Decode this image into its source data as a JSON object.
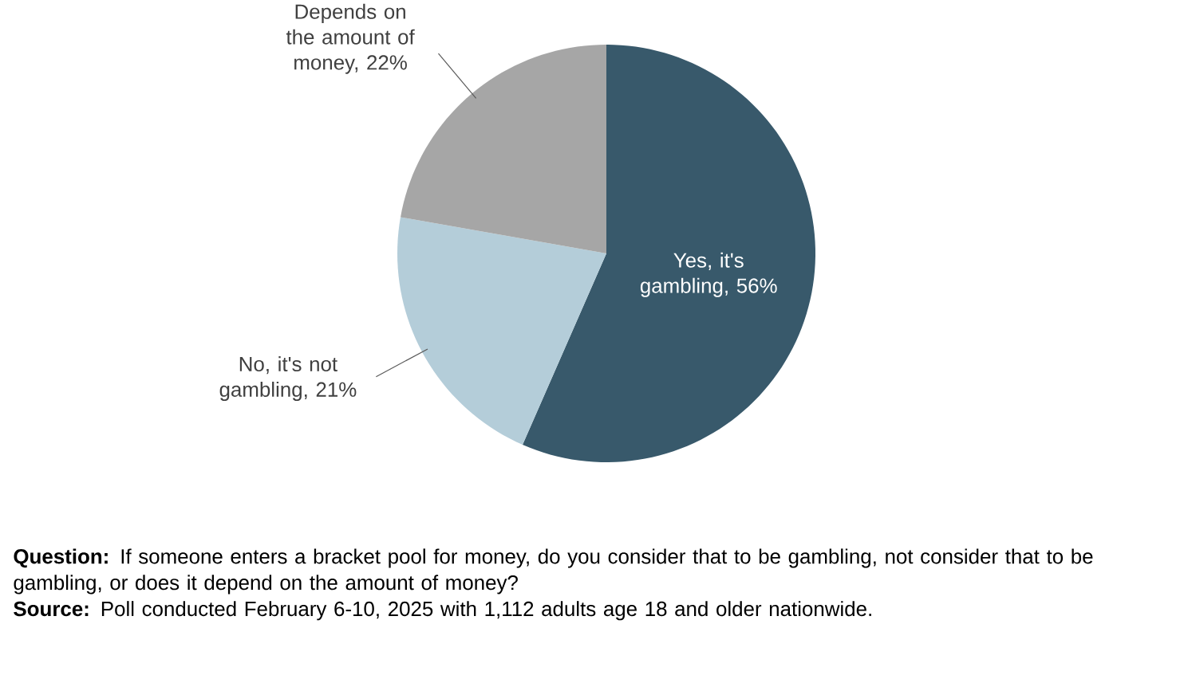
{
  "chart_data": {
    "type": "pie",
    "categories": [
      "Yes, it's gambling, 56%",
      "No, it's not gambling, 21%",
      "Depends on the amount of money, 22%"
    ],
    "values": [
      56,
      21,
      22
    ],
    "colors": [
      "#38596b",
      "#b4cdd9",
      "#a6a6a6"
    ],
    "annotations": [
      "**Question:** If someone enters a bracket pool for money, do you consider that to be gambling, not consider that to be gambling, or does it depend on the amount of money?",
      "**Source:** Poll conducted February 6-10, 2025 with 1,112 adults age 18 and older nationwide."
    ]
  }
}
